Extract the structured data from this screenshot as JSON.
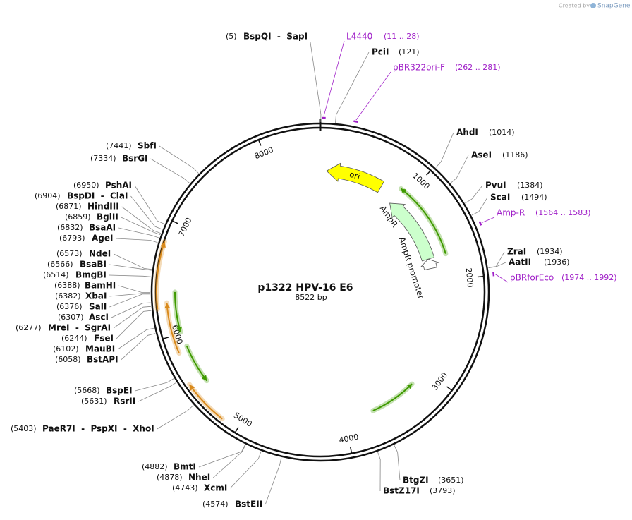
{
  "credit": "Created by",
  "brand": "SnapGene",
  "title": "p1322 HPV-16 E6",
  "length": {
    "value": 8522,
    "label": "8522 bp"
  },
  "ruler": [
    1000,
    2000,
    3000,
    4000,
    5000,
    6000,
    7000,
    8000
  ],
  "features": [
    {
      "name": "ori",
      "start": 71,
      "end": 710,
      "direction": "reverse",
      "color": "#ffff00"
    },
    {
      "name": "AmpR",
      "start": 900,
      "end": 1728,
      "direction": "reverse",
      "color": "#ccffcc"
    },
    {
      "name": "AmpR promoter",
      "start": 1728,
      "end": 1846,
      "direction": "reverse",
      "color": "#ffffff"
    }
  ],
  "tracks": [
    {
      "start": 900,
      "end": 1728,
      "direction": "reverse",
      "color": "#3f9a00"
    },
    {
      "start": 3196,
      "end": 3693,
      "direction": "reverse",
      "color": "#3f9a00"
    },
    {
      "start": 6249,
      "end": 6818,
      "direction": "forward",
      "color": "#d98a1c"
    },
    {
      "start": 5838,
      "end": 6297,
      "direction": "forward",
      "color": "#d98a1c"
    },
    {
      "start": 6013,
      "end": 6392,
      "direction": "reverse",
      "color": "#3f9a00"
    },
    {
      "start": 5492,
      "end": 5871,
      "direction": "reverse",
      "color": "#3f9a00"
    },
    {
      "start": 5153,
      "end": 5558,
      "direction": "forward",
      "color": "#d98a1c"
    }
  ],
  "primers": [
    {
      "name": "L4440",
      "range": "(11 .. 28)",
      "start": 11,
      "end": 28
    },
    {
      "name": "pBR322ori-F",
      "range": "(262 .. 281)",
      "start": 262,
      "end": 281
    },
    {
      "name": "Amp-R",
      "range": "(1564 .. 1583)",
      "start": 1564,
      "end": 1583
    },
    {
      "name": "pBRforEco",
      "range": "(1974 .. 1992)",
      "start": 1974,
      "end": 1992
    }
  ],
  "enzymes": [
    {
      "name": "BspQI  -  SapI",
      "position": {
        "value": 5,
        "label": "(5)"
      }
    },
    {
      "name": "PciI",
      "position": {
        "value": 121,
        "label": "(121)"
      }
    },
    {
      "name": "AhdI",
      "position": {
        "value": 1014,
        "label": "(1014)"
      }
    },
    {
      "name": "AseI",
      "position": {
        "value": 1186,
        "label": "(1186)"
      }
    },
    {
      "name": "PvuI",
      "position": {
        "value": 1384,
        "label": "(1384)"
      }
    },
    {
      "name": "ScaI",
      "position": {
        "value": 1494,
        "label": "(1494)"
      }
    },
    {
      "name": "ZraI",
      "position": {
        "value": 1934,
        "label": "(1934)"
      }
    },
    {
      "name": "AatII",
      "position": {
        "value": 1936,
        "label": "(1936)"
      }
    },
    {
      "name": "BtgZI",
      "position": {
        "value": 3651,
        "label": "(3651)"
      }
    },
    {
      "name": "BstZ17I",
      "position": {
        "value": 3793,
        "label": "(3793)"
      }
    },
    {
      "name": "BstEII",
      "position": {
        "value": 4574,
        "label": "(4574)"
      }
    },
    {
      "name": "XcmI",
      "position": {
        "value": 4743,
        "label": "(4743)"
      }
    },
    {
      "name": "NheI",
      "position": {
        "value": 4878,
        "label": "(4878)"
      }
    },
    {
      "name": "BmtI",
      "position": {
        "value": 4882,
        "label": "(4882)"
      }
    },
    {
      "name": "PaeR7I  -  PspXI  -  XhoI",
      "position": {
        "value": 5403,
        "label": "(5403)"
      }
    },
    {
      "name": "RsrII",
      "position": {
        "value": 5631,
        "label": "(5631)"
      }
    },
    {
      "name": "BspEI",
      "position": {
        "value": 5668,
        "label": "(5668)"
      }
    },
    {
      "name": "BstAPI",
      "position": {
        "value": 6058,
        "label": "(6058)"
      }
    },
    {
      "name": "MauBI",
      "position": {
        "value": 6102,
        "label": "(6102)"
      }
    },
    {
      "name": "FseI",
      "position": {
        "value": 6244,
        "label": "(6244)"
      }
    },
    {
      "name": "MreI  -  SgrAI",
      "position": {
        "value": 6277,
        "label": "(6277)"
      }
    },
    {
      "name": "AscI",
      "position": {
        "value": 6307,
        "label": "(6307)"
      }
    },
    {
      "name": "SalI",
      "position": {
        "value": 6376,
        "label": "(6376)"
      }
    },
    {
      "name": "XbaI",
      "position": {
        "value": 6382,
        "label": "(6382)"
      }
    },
    {
      "name": "BamHI",
      "position": {
        "value": 6388,
        "label": "(6388)"
      }
    },
    {
      "name": "BmgBI",
      "position": {
        "value": 6514,
        "label": "(6514)"
      }
    },
    {
      "name": "BsaBI",
      "position": {
        "value": 6566,
        "label": "(6566)"
      }
    },
    {
      "name": "NdeI",
      "position": {
        "value": 6573,
        "label": "(6573)"
      }
    },
    {
      "name": "AgeI",
      "position": {
        "value": 6793,
        "label": "(6793)"
      }
    },
    {
      "name": "BsaAI",
      "position": {
        "value": 6832,
        "label": "(6832)"
      }
    },
    {
      "name": "BglII",
      "position": {
        "value": 6859,
        "label": "(6859)"
      }
    },
    {
      "name": "HindIII",
      "position": {
        "value": 6871,
        "label": "(6871)"
      }
    },
    {
      "name": "BspDI  -  ClaI",
      "position": {
        "value": 6904,
        "label": "(6904)"
      }
    },
    {
      "name": "PshAI",
      "position": {
        "value": 6950,
        "label": "(6950)"
      }
    },
    {
      "name": "BsrGI",
      "position": {
        "value": 7334,
        "label": "(7334)"
      }
    },
    {
      "name": "SbfI",
      "position": {
        "value": 7441,
        "label": "(7441)"
      }
    }
  ]
}
